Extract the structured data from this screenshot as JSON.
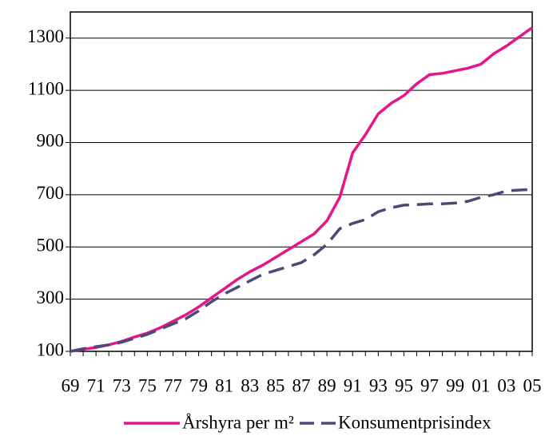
{
  "chart_data": {
    "type": "line",
    "categories": [
      "69",
      null,
      "71",
      null,
      "73",
      null,
      "75",
      null,
      "77",
      null,
      "79",
      null,
      "81",
      null,
      "83",
      null,
      "85",
      null,
      "87",
      null,
      "89",
      null,
      "91",
      null,
      "93",
      null,
      "95",
      null,
      "97",
      null,
      "99",
      null,
      "01",
      null,
      "03",
      null,
      "05"
    ],
    "series": [
      {
        "name": "Årshyra per m²",
        "color": "#e6158c",
        "dashed": false,
        "values": [
          100,
          108,
          115,
          125,
          138,
          155,
          170,
          190,
          215,
          240,
          270,
          305,
          340,
          375,
          405,
          430,
          460,
          490,
          520,
          550,
          600,
          690,
          860,
          930,
          1010,
          1050,
          1080,
          1125,
          1160,
          1165,
          1175,
          1185,
          1200,
          1240,
          1270,
          1305,
          1340
        ]
      },
      {
        "name": "Konsumentprisindex",
        "color": "#4a4a78",
        "dashed": true,
        "values": [
          100,
          110,
          118,
          125,
          135,
          150,
          165,
          185,
          205,
          225,
          255,
          290,
          320,
          345,
          370,
          395,
          410,
          425,
          440,
          470,
          510,
          570,
          590,
          605,
          635,
          650,
          660,
          662,
          665,
          665,
          668,
          675,
          690,
          700,
          715,
          718,
          720
        ]
      }
    ],
    "ylim": [
      100,
      1400
    ],
    "yticks": [
      100,
      300,
      500,
      700,
      900,
      1100,
      1300
    ],
    "grid": true
  }
}
